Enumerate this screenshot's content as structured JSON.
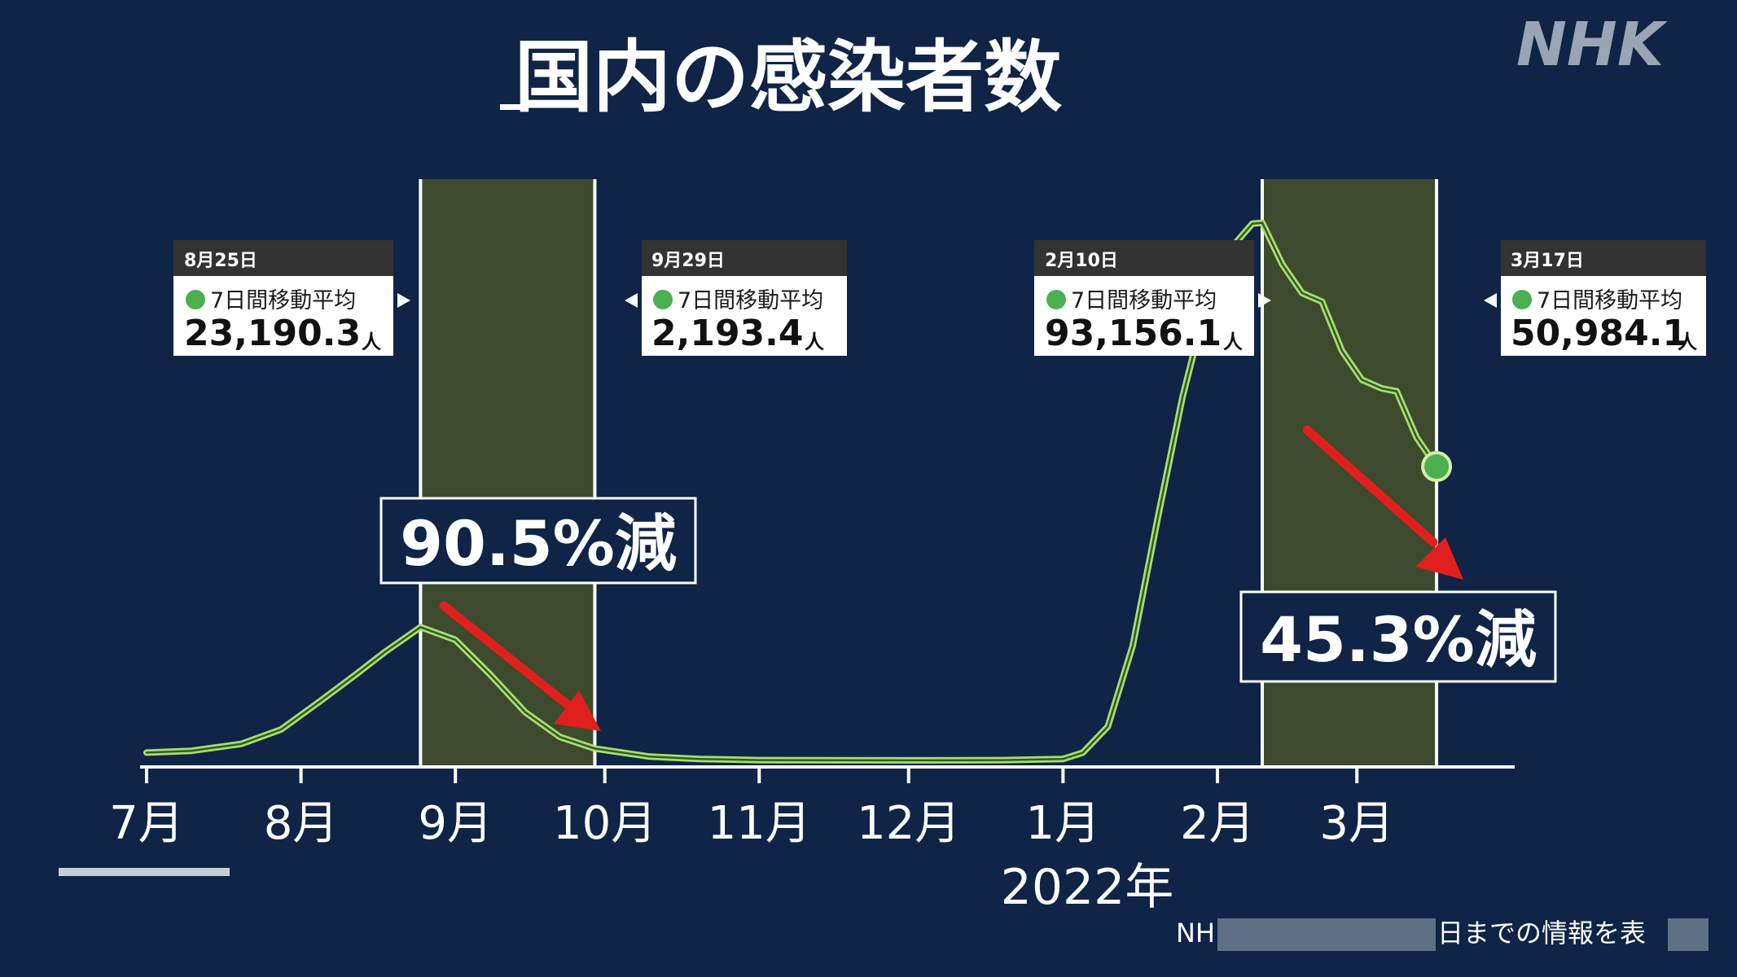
{
  "brand": "NHK",
  "title": "国内の感染者数",
  "source_text_left": "NH",
  "source_text_right": "日までの情報を表",
  "chart_data": {
    "type": "line",
    "x_unit": "date",
    "xlim": [
      "2021-07-01",
      "2022-03-25"
    ],
    "ylim": [
      0,
      100000
    ],
    "xlabel": "",
    "ylabel": "",
    "grid": false,
    "x_tick_labels": [
      "7月",
      "8月",
      "9月",
      "10月",
      "11月",
      "12月",
      "1月",
      "2月",
      "3月"
    ],
    "x_ticks": [
      "2021-07-01",
      "2021-08-01",
      "2021-09-01",
      "2021-10-01",
      "2021-11-01",
      "2021-12-01",
      "2022-01-01",
      "2022-02-01",
      "2022-03-01"
    ],
    "year_label": "2022年",
    "year_label_at": "2022-01-01",
    "series": [
      {
        "color": "#a9de6c",
        "points": [
          [
            "2021-07-01",
            1500
          ],
          [
            "2021-07-10",
            1800
          ],
          [
            "2021-07-20",
            3000
          ],
          [
            "2021-07-28",
            5500
          ],
          [
            "2021-08-05",
            10500
          ],
          [
            "2021-08-12",
            15000
          ],
          [
            "2021-08-18",
            19000
          ],
          [
            "2021-08-25",
            23190.3
          ],
          [
            "2021-09-01",
            21000
          ],
          [
            "2021-09-08",
            15000
          ],
          [
            "2021-09-15",
            8500
          ],
          [
            "2021-09-22",
            4200
          ],
          [
            "2021-09-29",
            2193.4
          ],
          [
            "2021-10-10",
            800
          ],
          [
            "2021-10-20",
            400
          ],
          [
            "2021-11-01",
            200
          ],
          [
            "2021-12-01",
            150
          ],
          [
            "2021-12-20",
            200
          ],
          [
            "2022-01-01",
            400
          ],
          [
            "2022-01-05",
            1500
          ],
          [
            "2022-01-10",
            6000
          ],
          [
            "2022-01-15",
            20000
          ],
          [
            "2022-01-20",
            42000
          ],
          [
            "2022-01-25",
            63000
          ],
          [
            "2022-01-30",
            80000
          ],
          [
            "2022-02-04",
            89000
          ],
          [
            "2022-02-08",
            93000
          ],
          [
            "2022-02-10",
            93156.1
          ],
          [
            "2022-02-14",
            86000
          ],
          [
            "2022-02-18",
            81000
          ],
          [
            "2022-02-22",
            79500
          ],
          [
            "2022-02-26",
            71000
          ],
          [
            "2022-03-02",
            66000
          ],
          [
            "2022-03-06",
            64500
          ],
          [
            "2022-03-09",
            64000
          ],
          [
            "2022-03-13",
            56000
          ],
          [
            "2022-03-17",
            50984.1
          ]
        ]
      }
    ],
    "highlight_bands": [
      {
        "start": "2021-08-25",
        "end": "2021-09-29",
        "color": "#3d4a2e"
      },
      {
        "start": "2022-02-10",
        "end": "2022-03-17",
        "color": "#3d4a2e"
      }
    ],
    "callouts": [
      {
        "date": "2021-08-25",
        "date_label": "8月25日",
        "label": "7日間移動平均",
        "value": "23,190.3",
        "unit": "人",
        "side": "left"
      },
      {
        "date": "2021-09-29",
        "date_label": "9月29日",
        "label": "7日間移動平均",
        "value": "2,193.4",
        "unit": "人",
        "side": "right"
      },
      {
        "date": "2022-02-10",
        "date_label": "2月10日",
        "label": "7日間移動平均",
        "value": "93,156.1",
        "unit": "人",
        "side": "left"
      },
      {
        "date": "2022-03-17",
        "date_label": "3月17日",
        "label": "7日間移動平均",
        "value": "50,984.1",
        "unit": "人",
        "side": "right"
      }
    ],
    "annotations": [
      {
        "text": "90.5%減",
        "arrow_color": "#e0201c"
      },
      {
        "text": "45.3%減",
        "arrow_color": "#e0201c"
      }
    ],
    "end_marker": {
      "date": "2022-03-17",
      "value": 50984.1,
      "color": "#4caf50"
    }
  }
}
